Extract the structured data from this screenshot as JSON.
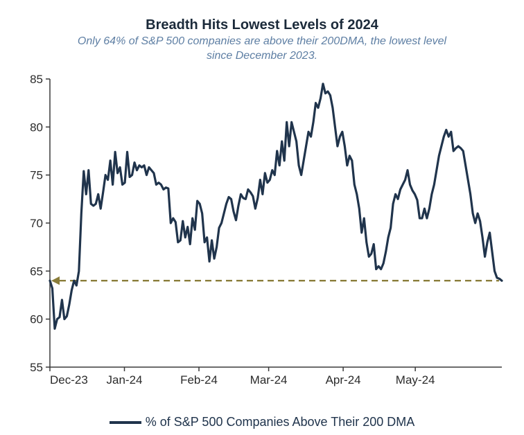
{
  "title": "Breadth Hits Lowest Levels of 2024",
  "subtitle": "Only 64% of S&P 500 companies are above their 200DMA, the lowest level since December 2023.",
  "title_color": "#1b2a3a",
  "title_fontsize": 20,
  "subtitle_color": "#5d7ea3",
  "subtitle_fontsize": 16,
  "chart": {
    "type": "line",
    "background_color": "#ffffff",
    "axis_color": "#3a3a3a",
    "axis_width": 1.5,
    "tick_color": "#3a3a3a",
    "tick_length": 6,
    "tick_label_color": "#2b2b2b",
    "tick_label_fontsize": 17,
    "ylim": [
      55,
      85
    ],
    "ytick_step": 5,
    "yticks": [
      55,
      60,
      65,
      70,
      75,
      80,
      85
    ],
    "xlabels": [
      "Dec-23",
      "Jan-24",
      "Feb-24",
      "Mar-24",
      "Apr-24",
      "May-24"
    ],
    "x_range_days": 188,
    "x_month_offsets_days": [
      0,
      31,
      62,
      91,
      122,
      152
    ],
    "series": {
      "name": "% of S&P 500 Companies Above Their 200 DMA",
      "color": "#20344c",
      "line_width": 3.2,
      "values": [
        64.0,
        63.2,
        59.0,
        60.0,
        60.2,
        62.0,
        60.0,
        60.3,
        61.5,
        63.0,
        64.0,
        63.5,
        65.0,
        71.0,
        75.4,
        73.0,
        75.5,
        72.0,
        71.8,
        72.0,
        73.0,
        71.5,
        73.2,
        75.0,
        74.5,
        76.5,
        74.0,
        77.4,
        75.2,
        75.8,
        74.0,
        74.2,
        77.4,
        74.8,
        75.0,
        76.3,
        75.5,
        76.0,
        75.8,
        76.0,
        75.0,
        75.8,
        75.5,
        75.2,
        74.0,
        74.2,
        74.0,
        73.5,
        73.7,
        73.6,
        70.0,
        70.5,
        70.1,
        68.0,
        68.2,
        70.2,
        68.5,
        69.6,
        67.8,
        70.5,
        69.3,
        72.3,
        72.0,
        71.0,
        68.0,
        68.5,
        66.0,
        68.2,
        66.3,
        67.5,
        69.5,
        70.0,
        71.0,
        72.0,
        72.7,
        72.5,
        71.2,
        70.3,
        71.8,
        73.0,
        72.6,
        72.5,
        73.5,
        73.2,
        72.8,
        71.5,
        72.6,
        74.5,
        73.0,
        75.2,
        74.2,
        74.5,
        75.5,
        75.0,
        77.5,
        76.0,
        78.5,
        76.5,
        80.5,
        78.0,
        80.5,
        79.5,
        78.5,
        76.0,
        75.0,
        76.5,
        78.0,
        79.5,
        79.0,
        80.5,
        82.5,
        82.0,
        83.0,
        84.5,
        83.5,
        83.7,
        83.3,
        82.0,
        80.0,
        78.0,
        79.0,
        79.5,
        78.0,
        76.0,
        77.0,
        76.5,
        74.0,
        73.0,
        71.5,
        69.0,
        70.5,
        68.0,
        66.5,
        66.8,
        67.8,
        65.2,
        65.5,
        65.2,
        65.8,
        67.0,
        68.5,
        69.5,
        72.0,
        73.0,
        72.5,
        73.5,
        74.0,
        74.5,
        75.5,
        74.0,
        73.4,
        73.0,
        72.4,
        70.5,
        70.5,
        71.5,
        70.5,
        71.5,
        73.0,
        74.0,
        75.5,
        77.0,
        78.0,
        79.0,
        79.7,
        79.0,
        79.5,
        77.5,
        77.8,
        78.0,
        77.8,
        77.5,
        76.0,
        74.5,
        73.0,
        71.0,
        70.0,
        71.0,
        70.2,
        68.5,
        66.5,
        68.0,
        69.0,
        67.0,
        65.0,
        64.3,
        64.2,
        64.0
      ]
    },
    "reference_line": {
      "y": 64,
      "color": "#8a7d3a",
      "style": "dashed",
      "dash": "9 6",
      "width": 2.4,
      "arrow": "left",
      "arrow_fill": "#8a7d3a"
    },
    "legend": {
      "label": "% of S&P 500 Companies Above Their 200 DMA",
      "color": "#20344c",
      "fontsize": 18,
      "position": "bottom-center"
    }
  }
}
